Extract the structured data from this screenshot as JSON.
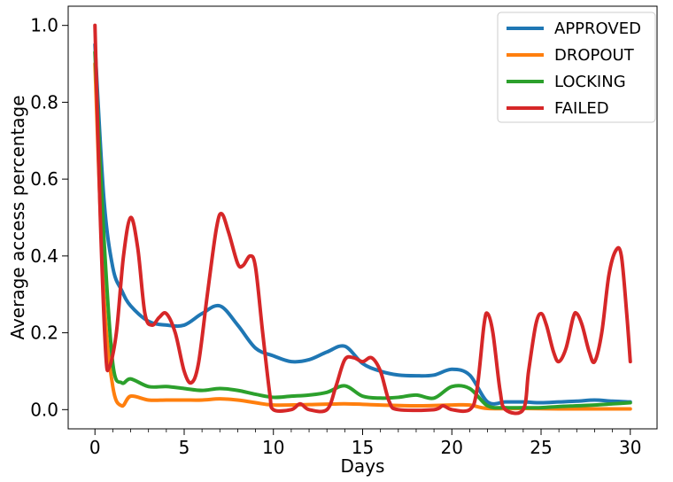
{
  "chart_data": {
    "type": "line",
    "title": "",
    "xlabel": "Days",
    "ylabel": "Average access percentage",
    "xlim": [
      -1.5,
      31.5
    ],
    "ylim": [
      -0.05,
      1.05
    ],
    "xticks": [
      0,
      5,
      10,
      15,
      20,
      25,
      30
    ],
    "yticks": [
      0.0,
      0.2,
      0.4,
      0.6,
      0.8,
      1.0
    ],
    "xtick_labels": [
      "0",
      "5",
      "10",
      "15",
      "20",
      "25",
      "30"
    ],
    "ytick_labels": [
      "0.0",
      "0.2",
      "0.4",
      "0.6",
      "0.8",
      "1.0"
    ],
    "grid": false,
    "legend_position": "top-right",
    "series": [
      {
        "name": "APPROVED",
        "color": "#1f77b4",
        "points": [
          [
            0,
            0.95
          ],
          [
            0.5,
            0.55
          ],
          [
            1,
            0.37
          ],
          [
            1.5,
            0.31
          ],
          [
            2,
            0.27
          ],
          [
            3,
            0.23
          ],
          [
            4,
            0.22
          ],
          [
            5,
            0.22
          ],
          [
            6,
            0.25
          ],
          [
            7,
            0.27
          ],
          [
            8,
            0.22
          ],
          [
            9,
            0.16
          ],
          [
            10,
            0.14
          ],
          [
            11,
            0.125
          ],
          [
            12,
            0.13
          ],
          [
            13,
            0.15
          ],
          [
            14,
            0.165
          ],
          [
            15,
            0.12
          ],
          [
            16,
            0.1
          ],
          [
            17,
            0.09
          ],
          [
            18,
            0.088
          ],
          [
            19,
            0.09
          ],
          [
            20,
            0.105
          ],
          [
            21,
            0.09
          ],
          [
            22,
            0.02
          ],
          [
            23,
            0.02
          ],
          [
            24,
            0.02
          ],
          [
            25,
            0.018
          ],
          [
            26,
            0.02
          ],
          [
            27,
            0.022
          ],
          [
            28,
            0.025
          ],
          [
            29,
            0.022
          ],
          [
            30,
            0.02
          ]
        ]
      },
      {
        "name": "DROPOUT",
        "color": "#ff7f0e",
        "points": [
          [
            0,
            0.9
          ],
          [
            0.5,
            0.3
          ],
          [
            1,
            0.06
          ],
          [
            1.5,
            0.01
          ],
          [
            2,
            0.035
          ],
          [
            3,
            0.025
          ],
          [
            4,
            0.025
          ],
          [
            5,
            0.025
          ],
          [
            6,
            0.025
          ],
          [
            7,
            0.028
          ],
          [
            8,
            0.025
          ],
          [
            9,
            0.018
          ],
          [
            10,
            0.012
          ],
          [
            12,
            0.013
          ],
          [
            14,
            0.015
          ],
          [
            16,
            0.012
          ],
          [
            18,
            0.01
          ],
          [
            20,
            0.012
          ],
          [
            21,
            0.012
          ],
          [
            22,
            0.003
          ],
          [
            24,
            0.003
          ],
          [
            26,
            0.002
          ],
          [
            28,
            0.002
          ],
          [
            30,
            0.002
          ]
        ]
      },
      {
        "name": "LOCKING",
        "color": "#2ca02c",
        "points": [
          [
            0,
            0.93
          ],
          [
            0.5,
            0.45
          ],
          [
            1,
            0.12
          ],
          [
            1.5,
            0.07
          ],
          [
            2,
            0.08
          ],
          [
            3,
            0.06
          ],
          [
            4,
            0.06
          ],
          [
            5,
            0.055
          ],
          [
            6,
            0.05
          ],
          [
            7,
            0.055
          ],
          [
            8,
            0.05
          ],
          [
            9,
            0.04
          ],
          [
            10,
            0.032
          ],
          [
            11,
            0.035
          ],
          [
            12,
            0.038
          ],
          [
            13,
            0.045
          ],
          [
            14,
            0.062
          ],
          [
            15,
            0.035
          ],
          [
            16,
            0.03
          ],
          [
            17,
            0.032
          ],
          [
            18,
            0.038
          ],
          [
            19,
            0.03
          ],
          [
            20,
            0.06
          ],
          [
            21,
            0.055
          ],
          [
            22,
            0.01
          ],
          [
            23,
            0.005
          ],
          [
            24,
            0.005
          ],
          [
            25,
            0.005
          ],
          [
            26,
            0.008
          ],
          [
            27,
            0.01
          ],
          [
            28,
            0.012
          ],
          [
            29,
            0.015
          ],
          [
            30,
            0.018
          ]
        ]
      },
      {
        "name": "FAILED",
        "color": "#d62728",
        "points": [
          [
            0,
            1.0
          ],
          [
            0.3,
            0.5
          ],
          [
            0.6,
            0.15
          ],
          [
            0.8,
            0.11
          ],
          [
            1.2,
            0.2
          ],
          [
            1.6,
            0.4
          ],
          [
            2,
            0.5
          ],
          [
            2.4,
            0.42
          ],
          [
            2.8,
            0.25
          ],
          [
            3.2,
            0.22
          ],
          [
            3.6,
            0.24
          ],
          [
            4,
            0.25
          ],
          [
            4.5,
            0.2
          ],
          [
            5,
            0.1
          ],
          [
            5.4,
            0.07
          ],
          [
            5.8,
            0.12
          ],
          [
            6.3,
            0.3
          ],
          [
            6.8,
            0.47
          ],
          [
            7.1,
            0.51
          ],
          [
            7.5,
            0.46
          ],
          [
            8,
            0.38
          ],
          [
            8.3,
            0.375
          ],
          [
            8.7,
            0.4
          ],
          [
            9,
            0.37
          ],
          [
            9.4,
            0.2
          ],
          [
            9.8,
            0.04
          ],
          [
            10,
            0.0
          ],
          [
            11,
            0.0
          ],
          [
            11.5,
            0.015
          ],
          [
            12,
            0.0
          ],
          [
            13,
            0.0
          ],
          [
            13.5,
            0.06
          ],
          [
            14,
            0.13
          ],
          [
            14.5,
            0.135
          ],
          [
            15,
            0.125
          ],
          [
            15.5,
            0.135
          ],
          [
            16,
            0.1
          ],
          [
            16.5,
            0.02
          ],
          [
            17,
            0.0
          ],
          [
            19,
            0.0
          ],
          [
            19.5,
            0.01
          ],
          [
            20,
            0.0
          ],
          [
            21,
            0.0
          ],
          [
            21.4,
            0.05
          ],
          [
            21.8,
            0.22
          ],
          [
            22,
            0.25
          ],
          [
            22.3,
            0.2
          ],
          [
            22.7,
            0.05
          ],
          [
            23,
            0.0
          ],
          [
            24,
            0.0
          ],
          [
            24.3,
            0.1
          ],
          [
            24.7,
            0.22
          ],
          [
            25,
            0.25
          ],
          [
            25.3,
            0.22
          ],
          [
            25.7,
            0.15
          ],
          [
            26,
            0.125
          ],
          [
            26.4,
            0.16
          ],
          [
            26.8,
            0.24
          ],
          [
            27,
            0.25
          ],
          [
            27.3,
            0.22
          ],
          [
            27.7,
            0.15
          ],
          [
            28,
            0.125
          ],
          [
            28.4,
            0.2
          ],
          [
            28.8,
            0.35
          ],
          [
            29.2,
            0.415
          ],
          [
            29.5,
            0.4
          ],
          [
            29.8,
            0.25
          ],
          [
            30,
            0.125
          ]
        ]
      }
    ]
  }
}
